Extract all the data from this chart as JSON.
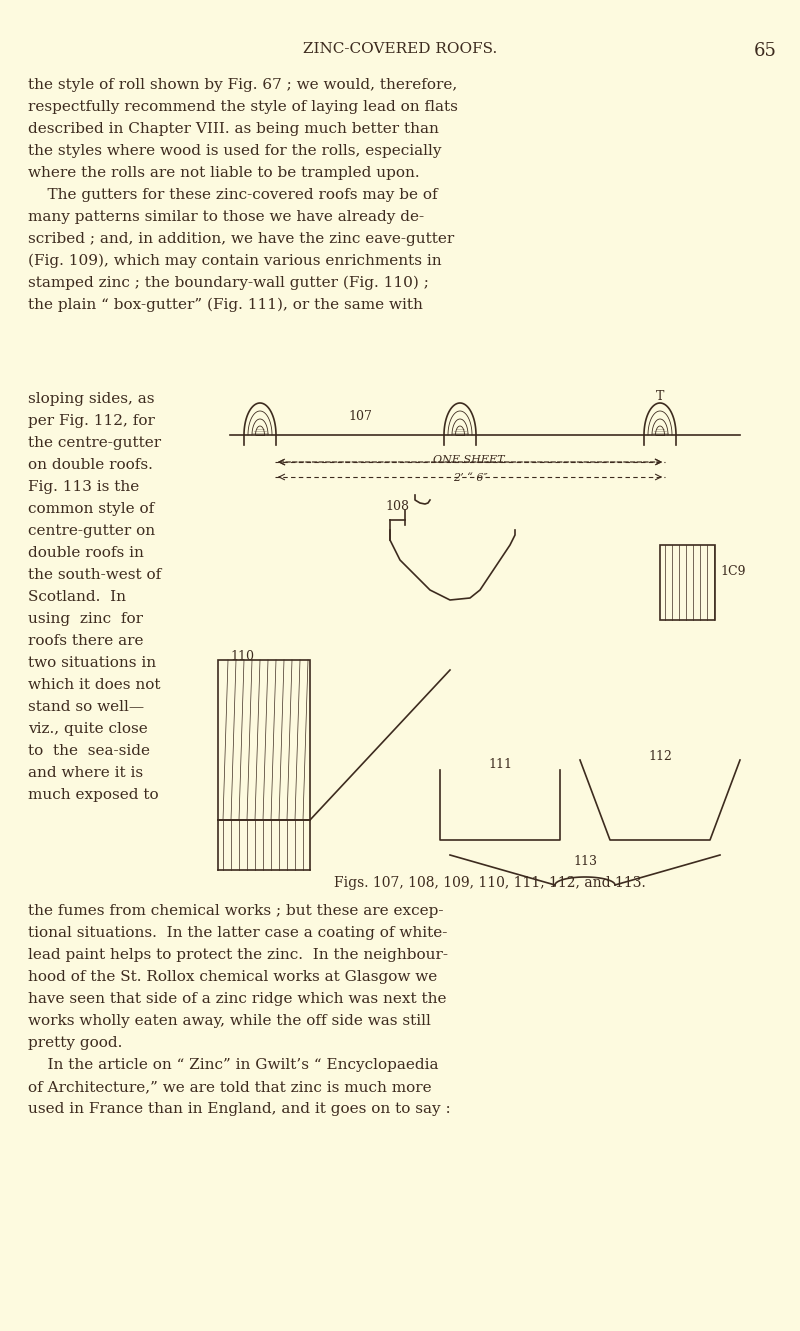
{
  "bg_color": "#FDFADF",
  "text_color": "#3D2B1F",
  "page_title": "ZINC-COVERED ROOFS.",
  "page_number": "65",
  "title_fontsize": 11,
  "body_fontsize": 11,
  "body_text_left": "the style of roll shown by Fig. 67 ; we would, therefore,\nrespectfully recommend the style of laying lead on flats\ndescribed in Chapter VIII. as being much better than\nthe styles where wood is used for the rolls, especially\nwhere the rolls are not liable to be trampled upon.\n    The gutters for these zinc-covered roofs may be of\nmany patterns similar to those we have already de-\nscribed ; and, in addition, we have the zinc eave-gutter\n(Fig. 109), which may contain various enrichments in\nstamped zinc ; the boundary-wall gutter (Fig. 110) ;\nthe plain “ box-gutter” (Fig. 111), or the same with",
  "left_column_text": "sloping sides, as\nper Fig. 112, for\nthe centre-gutter\non double roofs.\nFig. 113 is the\ncommon style of\ncentre-gutter on\ndouble roofs in\nthe south-west of\nScotland.  In\nusing  zinc  for\nroofs there are\ntwo situations in\nwhich it does not\nstand so well—\nviz., quite close\nto  the  sea-side\nand where it is\nmuch exposed to",
  "bottom_text": "the fumes from chemical works ; but these are excep-\ntional situations.  In the latter case a coating of white-\nlead paint helps to protect the zinc.  In the neighbour-\nhood of the St. Rollox chemical works at Glasgow we\nhave seen that side of a zinc ridge which was next the\nworks wholly eaten away, while the off side was still\npretty good.\n    In the article on “ Zinc” in Gwilt’s “ Encyclopaedia\nof Architecture,” we are told that zinc is much more\nused in France than in England, and it goes on to say :"
}
